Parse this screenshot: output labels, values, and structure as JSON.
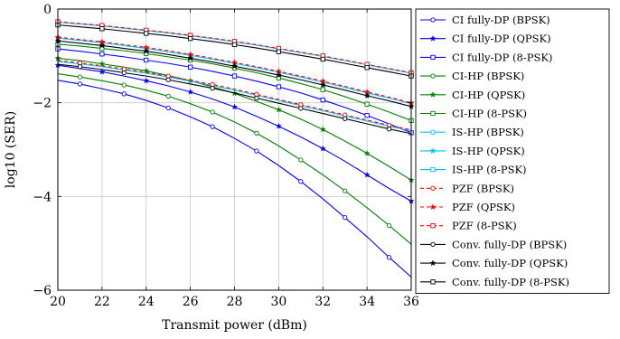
{
  "chart_data": {
    "type": "line",
    "xlabel": "Transmit power (dBm)",
    "ylabel": "log10 (SER)",
    "xlim": [
      20,
      36
    ],
    "ylim": [
      -6,
      0
    ],
    "xticks": [
      20,
      22,
      24,
      26,
      28,
      30,
      32,
      34,
      36
    ],
    "yticks": [
      0,
      -2,
      -4,
      -6
    ],
    "grid": true,
    "legend_position": "right-outside",
    "colors": {
      "blue": "#0000ff",
      "green": "#008000",
      "cyan": "#00bfff",
      "red": "#ff0000",
      "black": "#000000"
    },
    "series": [
      {
        "name": "CI fully-DP (BPSK)",
        "color": "#0000ff",
        "dash": false,
        "marker": "circle",
        "x": [
          20,
          21,
          22,
          23,
          24,
          25,
          26,
          27,
          28,
          29,
          30,
          31,
          32,
          33,
          34,
          35,
          36
        ],
        "y": [
          -1.52,
          -1.6,
          -1.7,
          -1.81,
          -1.95,
          -2.11,
          -2.3,
          -2.51,
          -2.76,
          -3.03,
          -3.34,
          -3.68,
          -4.05,
          -4.45,
          -4.86,
          -5.3,
          -5.72
        ]
      },
      {
        "name": "CI fully-DP (QPSK)",
        "color": "#0000ff",
        "dash": false,
        "marker": "star",
        "x": [
          20,
          21,
          22,
          23,
          24,
          25,
          26,
          27,
          28,
          29,
          30,
          31,
          32,
          33,
          34,
          35,
          36
        ],
        "y": [
          -1.2,
          -1.27,
          -1.34,
          -1.43,
          -1.53,
          -1.64,
          -1.77,
          -1.92,
          -2.09,
          -2.29,
          -2.5,
          -2.73,
          -2.98,
          -3.25,
          -3.54,
          -3.83,
          -4.1
        ]
      },
      {
        "name": "CI fully-DP (8-PSK)",
        "color": "#0000ff",
        "dash": false,
        "marker": "square",
        "x": [
          20,
          21,
          22,
          23,
          24,
          25,
          26,
          27,
          28,
          29,
          30,
          31,
          32,
          33,
          34,
          35,
          36
        ],
        "y": [
          -0.85,
          -0.9,
          -0.96,
          -1.02,
          -1.09,
          -1.16,
          -1.24,
          -1.33,
          -1.43,
          -1.54,
          -1.66,
          -1.79,
          -1.94,
          -2.1,
          -2.27,
          -2.45,
          -2.64
        ]
      },
      {
        "name": "CI-HP (BPSK)",
        "color": "#008000",
        "dash": false,
        "marker": "circle",
        "x": [
          20,
          21,
          22,
          23,
          24,
          25,
          26,
          27,
          28,
          29,
          30,
          31,
          32,
          33,
          34,
          35,
          36
        ],
        "y": [
          -1.38,
          -1.45,
          -1.53,
          -1.62,
          -1.73,
          -1.86,
          -2.02,
          -2.2,
          -2.41,
          -2.65,
          -2.92,
          -3.22,
          -3.54,
          -3.88,
          -4.24,
          -4.62,
          -5.02
        ]
      },
      {
        "name": "CI-HP (QPSK)",
        "color": "#008000",
        "dash": false,
        "marker": "star",
        "x": [
          20,
          21,
          22,
          23,
          24,
          25,
          26,
          27,
          28,
          29,
          30,
          31,
          32,
          33,
          34,
          35,
          36
        ],
        "y": [
          -1.05,
          -1.1,
          -1.17,
          -1.24,
          -1.32,
          -1.42,
          -1.53,
          -1.66,
          -1.8,
          -1.97,
          -2.15,
          -2.35,
          -2.57,
          -2.82,
          -3.08,
          -3.36,
          -3.65
        ]
      },
      {
        "name": "CI-HP (8-PSK)",
        "color": "#008000",
        "dash": false,
        "marker": "square",
        "x": [
          20,
          21,
          22,
          23,
          24,
          25,
          26,
          27,
          28,
          29,
          30,
          31,
          32,
          33,
          34,
          35,
          36
        ],
        "y": [
          -0.75,
          -0.79,
          -0.84,
          -0.89,
          -0.95,
          -1.02,
          -1.09,
          -1.17,
          -1.26,
          -1.36,
          -1.47,
          -1.59,
          -1.72,
          -1.87,
          -2.03,
          -2.2,
          -2.38
        ]
      },
      {
        "name": "IS-HP (BPSK)",
        "color": "#00bfff",
        "dash": false,
        "marker": "circle",
        "x": [
          20,
          21,
          22,
          23,
          24,
          25,
          26,
          27,
          28,
          29,
          30,
          31,
          32,
          33,
          34,
          35,
          36
        ],
        "y": [
          -1.12,
          -1.17,
          -1.23,
          -1.3,
          -1.37,
          -1.45,
          -1.54,
          -1.63,
          -1.73,
          -1.84,
          -1.95,
          -2.06,
          -2.17,
          -2.28,
          -2.39,
          -2.5,
          -2.6
        ]
      },
      {
        "name": "IS-HP (QPSK)",
        "color": "#00bfff",
        "dash": false,
        "marker": "star",
        "x": [
          20,
          21,
          22,
          23,
          24,
          25,
          26,
          27,
          28,
          29,
          30,
          31,
          32,
          33,
          34,
          35,
          36
        ],
        "y": [
          -0.62,
          -0.67,
          -0.72,
          -0.78,
          -0.84,
          -0.91,
          -0.99,
          -1.07,
          -1.16,
          -1.25,
          -1.35,
          -1.45,
          -1.56,
          -1.67,
          -1.79,
          -1.9,
          -2.02
        ]
      },
      {
        "name": "IS-HP (8-PSK)",
        "color": "#00bfff",
        "dash": false,
        "marker": "square",
        "x": [
          20,
          21,
          22,
          23,
          24,
          25,
          26,
          27,
          28,
          29,
          30,
          31,
          32,
          33,
          34,
          35,
          36
        ],
        "y": [
          -0.28,
          -0.32,
          -0.36,
          -0.41,
          -0.46,
          -0.51,
          -0.57,
          -0.63,
          -0.7,
          -0.77,
          -0.85,
          -0.93,
          -1.01,
          -1.1,
          -1.19,
          -1.28,
          -1.37
        ]
      },
      {
        "name": "PZF (BPSK)",
        "color": "#ff0000",
        "dash": true,
        "marker": "circle",
        "x": [
          20,
          21,
          22,
          23,
          24,
          25,
          26,
          27,
          28,
          29,
          30,
          31,
          32,
          33,
          34,
          35,
          36
        ],
        "y": [
          -1.1,
          -1.15,
          -1.21,
          -1.28,
          -1.35,
          -1.43,
          -1.52,
          -1.61,
          -1.71,
          -1.82,
          -1.93,
          -2.04,
          -2.15,
          -2.26,
          -2.37,
          -2.48,
          -2.58
        ]
      },
      {
        "name": "PZF (QPSK)",
        "color": "#ff0000",
        "dash": true,
        "marker": "star",
        "x": [
          20,
          21,
          22,
          23,
          24,
          25,
          26,
          27,
          28,
          29,
          30,
          31,
          32,
          33,
          34,
          35,
          36
        ],
        "y": [
          -0.6,
          -0.65,
          -0.7,
          -0.76,
          -0.82,
          -0.89,
          -0.97,
          -1.05,
          -1.14,
          -1.23,
          -1.33,
          -1.43,
          -1.54,
          -1.65,
          -1.77,
          -1.88,
          -2.0
        ]
      },
      {
        "name": "PZF (8-PSK)",
        "color": "#ff0000",
        "dash": true,
        "marker": "square",
        "x": [
          20,
          21,
          22,
          23,
          24,
          25,
          26,
          27,
          28,
          29,
          30,
          31,
          32,
          33,
          34,
          35,
          36
        ],
        "y": [
          -0.27,
          -0.31,
          -0.35,
          -0.4,
          -0.45,
          -0.5,
          -0.56,
          -0.62,
          -0.69,
          -0.76,
          -0.84,
          -0.92,
          -1.0,
          -1.09,
          -1.18,
          -1.27,
          -1.36
        ]
      },
      {
        "name": "Conv. fully-DP (BPSK)",
        "color": "#000000",
        "dash": false,
        "marker": "circle",
        "x": [
          20,
          21,
          22,
          23,
          24,
          25,
          26,
          27,
          28,
          29,
          30,
          31,
          32,
          33,
          34,
          35,
          36
        ],
        "y": [
          -1.18,
          -1.23,
          -1.29,
          -1.36,
          -1.43,
          -1.51,
          -1.6,
          -1.69,
          -1.79,
          -1.9,
          -2.01,
          -2.12,
          -2.23,
          -2.34,
          -2.45,
          -2.56,
          -2.66
        ]
      },
      {
        "name": "Conv. fully-DP (QPSK)",
        "color": "#000000",
        "dash": false,
        "marker": "star",
        "x": [
          20,
          21,
          22,
          23,
          24,
          25,
          26,
          27,
          28,
          29,
          30,
          31,
          32,
          33,
          34,
          35,
          36
        ],
        "y": [
          -0.68,
          -0.73,
          -0.78,
          -0.84,
          -0.9,
          -0.97,
          -1.05,
          -1.13,
          -1.22,
          -1.31,
          -1.41,
          -1.51,
          -1.62,
          -1.73,
          -1.85,
          -1.96,
          -2.08
        ]
      },
      {
        "name": "Conv. fully-DP (8-PSK)",
        "color": "#000000",
        "dash": false,
        "marker": "square",
        "x": [
          20,
          21,
          22,
          23,
          24,
          25,
          26,
          27,
          28,
          29,
          30,
          31,
          32,
          33,
          34,
          35,
          36
        ],
        "y": [
          -0.34,
          -0.38,
          -0.42,
          -0.47,
          -0.52,
          -0.57,
          -0.63,
          -0.69,
          -0.76,
          -0.83,
          -0.91,
          -0.99,
          -1.07,
          -1.16,
          -1.25,
          -1.34,
          -1.43
        ]
      }
    ]
  }
}
